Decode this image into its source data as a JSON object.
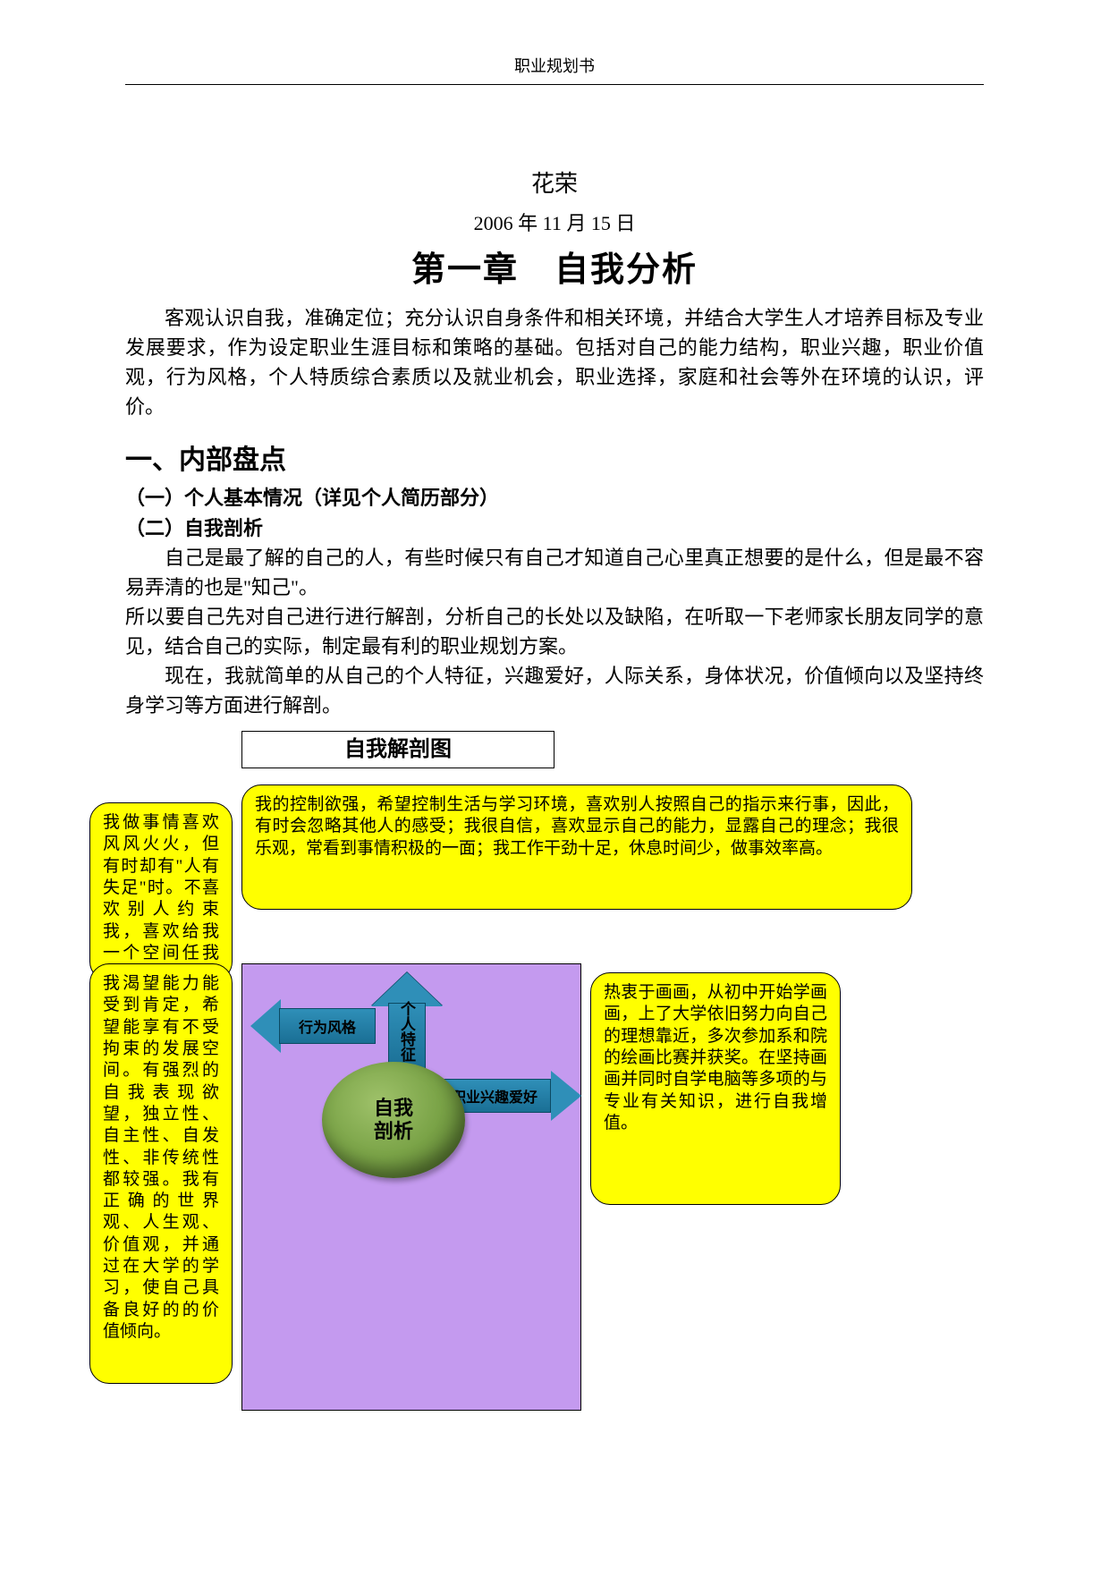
{
  "header": {
    "title": "职业规划书"
  },
  "author": "花荣",
  "date": "2006 年 11 月 15 日",
  "chapter": "第一章　自我分析",
  "intro": "客观认识自我，准确定位；充分认识自身条件和相关环境，并结合大学生人才培养目标及专业发展要求，作为设定职业生涯目标和策略的基础。包括对自己的能力结构，职业兴趣，职业价值观，行为风格，个人特质综合素质以及就业机会，职业选择，家庭和社会等外在环境的认识，评价。",
  "section1_title": "一、内部盘点",
  "sub1": "（一）个人基本情况（详见个人简历部分）",
  "sub2": "（二）自我剖析",
  "p1": "自己是最了解的自己的人，有些时候只有自己才知道自己心里真正想要的是什么，但是最不容易弄清的也是\"知己\"。",
  "p2": "所以要自己先对自己进行进行解剖，分析自己的长处以及缺陷，在听取一下老师家长朋友同学的意见，结合自己的实际，制定最有利的职业规划方案。",
  "p3": "现在，我就简单的从自己的个人特征，兴趣爱好，人际关系，身体状况，价值倾向以及坚持终身学习等方面进行解剖。",
  "diagram": {
    "title": "自我解剖图",
    "center": "自我\n剖析",
    "arrows": {
      "up": "个人特征",
      "left": "行为风格",
      "right": "职业兴趣爱好"
    },
    "callouts": {
      "top": "我的控制欲强，希望控制生活与学习环境，喜欢别人按照自己的指示来行事，因此，有时会忽略其他人的感受；我很自信，喜欢显示自己的能力，显露自己的理念；我很乐观，常看到事情积极的一面；我工作干劲十足，休息时间少，做事效率高。",
      "left1": "我做事情喜欢风风火火，但有时却有\"人有失足\"时。不喜欢别人约束我，喜欢给我一个空间任我发挥。",
      "left2": "我渴望能力能受到肯定，希望能享有不受拘束的发展空间。有强烈的自我表现欲望，独立性、自主性、自发性、非传统性都较强。我有正确的世界观、人生观、价值观，并通过在大学的学习，使自己具备良好的的价值倾向。",
      "right": "热衷于画画，从初中开始学画画，上了大学依旧努力向自己的理想靠近，多次参加系和院的绘画比赛并获奖。在坚持画画并同时自学电脑等多项的与专业有关知识，进行自我增值。"
    },
    "colors": {
      "callout_bg": "#ffff00",
      "callout_border": "#000000",
      "purple_bg": "#c49aef",
      "arrow_fill": "#2f8fb8",
      "arrow_border": "#0c4a63",
      "oval_gradient": [
        "#9fc26a",
        "#7aa347",
        "#4e6f28"
      ]
    }
  }
}
